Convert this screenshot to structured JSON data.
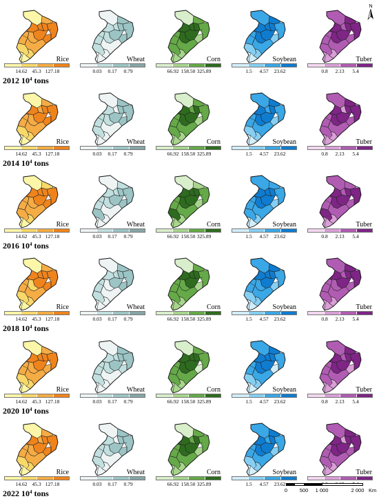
{
  "unit": "10",
  "unit_exp": "4",
  "unit_suffix": "tons",
  "years": [
    "2012",
    "2014",
    "2016",
    "2018",
    "2020",
    "2022"
  ],
  "crops": [
    {
      "name": "Rice",
      "ticks": [
        "14.62",
        "45.3",
        "127.18"
      ],
      "colors": [
        "#fbf6a8",
        "#f8d869",
        "#f5ac45",
        "#ef841d"
      ]
    },
    {
      "name": "Wheat",
      "ticks": [
        "0.03",
        "0.17",
        "0.79"
      ],
      "colors": [
        "#eef3f3",
        "#c2dfdf",
        "#9cc4c5",
        "#88a5a6"
      ]
    },
    {
      "name": "Corn",
      "ticks": [
        "66.92",
        "158.50",
        "325.89"
      ],
      "colors": [
        "#d9eecb",
        "#a8d58c",
        "#65a948",
        "#2e6b1f"
      ]
    },
    {
      "name": "Soybean",
      "ticks": [
        "1.5",
        "4.57",
        "23.62"
      ],
      "colors": [
        "#d2eefa",
        "#86cff2",
        "#3aa7e6",
        "#0f7cd0"
      ]
    },
    {
      "name": "Tuber",
      "ticks": [
        "0.8",
        "2.13",
        "5.4"
      ],
      "colors": [
        "#f3d8f0",
        "#d99fd6",
        "#b15cb3",
        "#7e2585"
      ]
    }
  ],
  "north_label": "N",
  "scale": {
    "labels": [
      "0",
      "500",
      "1 000",
      "2 000"
    ],
    "unit": "Km"
  }
}
